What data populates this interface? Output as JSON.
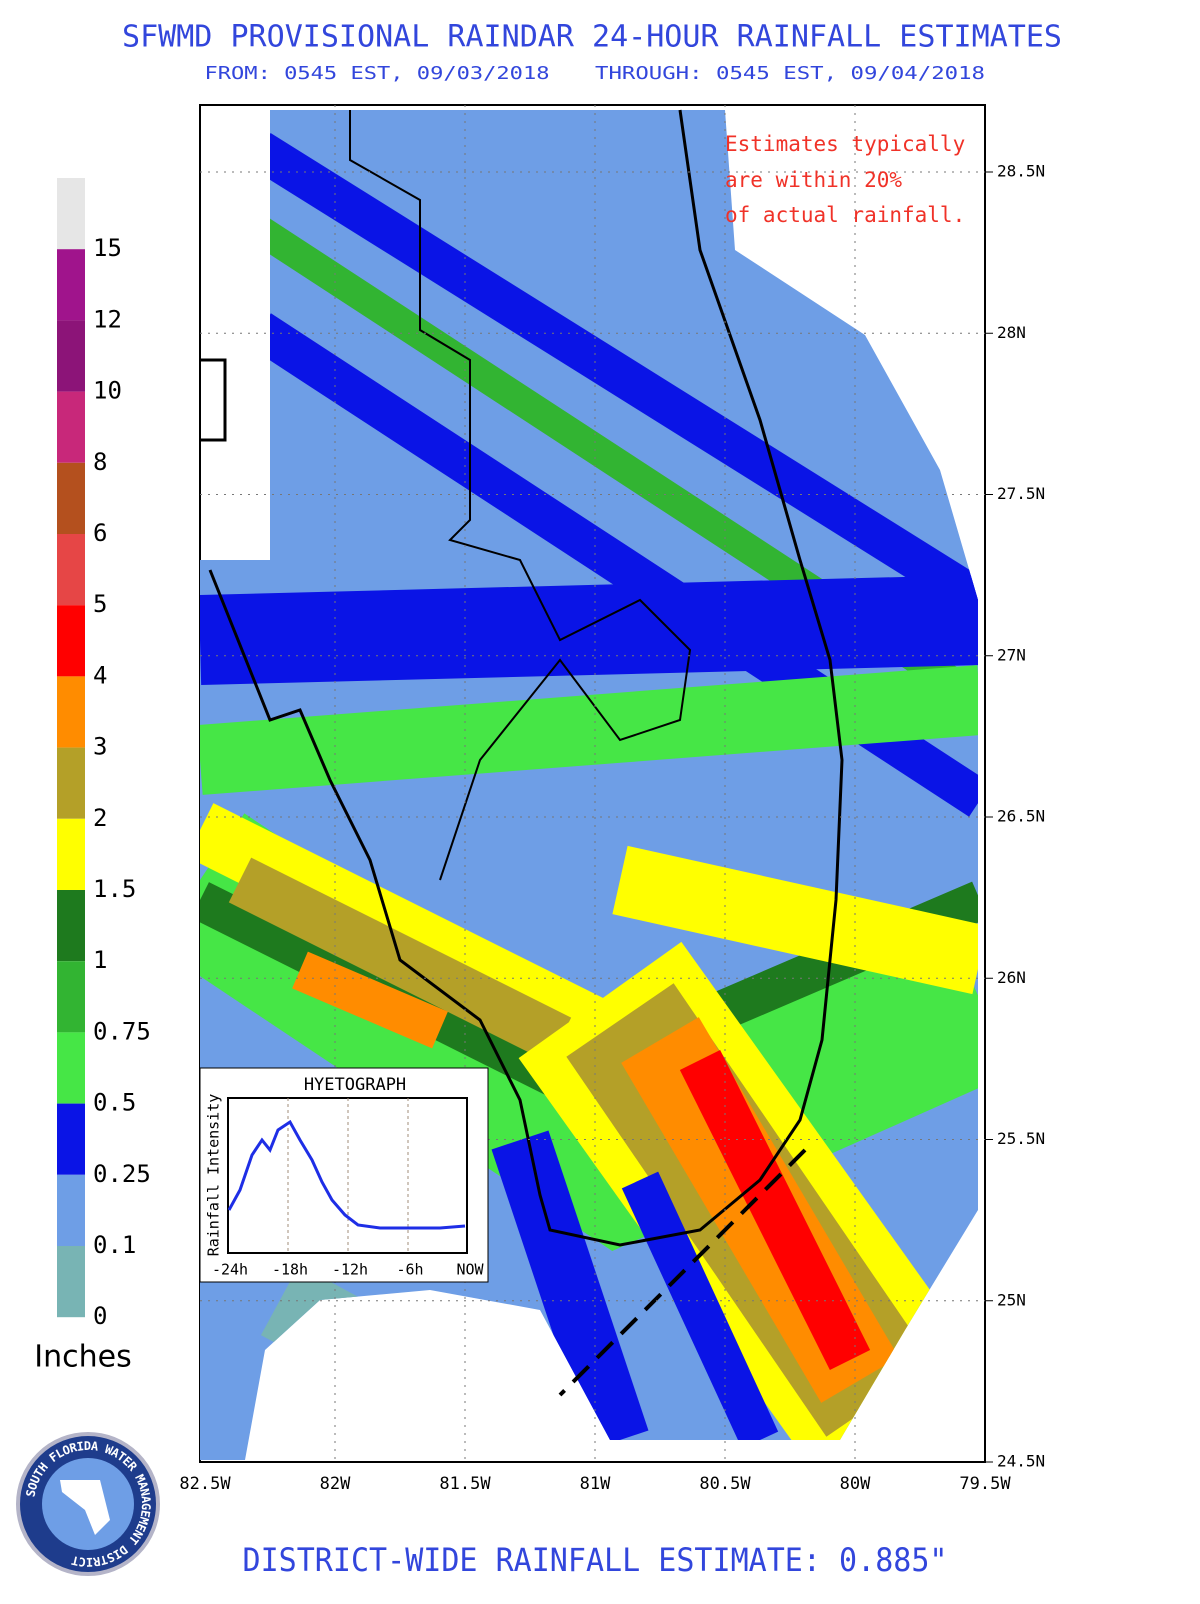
{
  "header": {
    "title": "SFWMD PROVISIONAL RAINDAR 24-HOUR RAINFALL ESTIMATES",
    "from": "FROM: 0545 EST, 09/03/2018",
    "through": "THROUGH: 0545 EST, 09/04/2018"
  },
  "legend": {
    "unit": "Inches",
    "items": [
      {
        "label": "15",
        "color": "#e6e6e6"
      },
      {
        "label": "12",
        "color": "#a0148c"
      },
      {
        "label": "10",
        "color": "#8c1478"
      },
      {
        "label": "8",
        "color": "#c8287a"
      },
      {
        "label": "6",
        "color": "#b4501e"
      },
      {
        "label": "5",
        "color": "#e64646"
      },
      {
        "label": "4",
        "color": "#ff0000"
      },
      {
        "label": "3",
        "color": "#ff8c00"
      },
      {
        "label": "2",
        "color": "#b4a028"
      },
      {
        "label": "1.5",
        "color": "#ffff00"
      },
      {
        "label": "1",
        "color": "#1e7a1e"
      },
      {
        "label": "0.75",
        "color": "#32b432"
      },
      {
        "label": "0.5",
        "color": "#46e646"
      },
      {
        "label": "0.25",
        "color": "#0a14e6"
      },
      {
        "label": "0.1",
        "color": "#6e9ee6"
      },
      {
        "label": "0",
        "color": "#78b4b4"
      }
    ]
  },
  "map": {
    "note": [
      "Estimates typically",
      "are within 20%",
      "of actual rainfall."
    ],
    "latitudes": [
      "28.5N",
      "28N",
      "27.5N",
      "27N",
      "26.5N",
      "26N",
      "25.5N",
      "25N",
      "24.5N"
    ],
    "longitudes": [
      "82.5W",
      "82W",
      "81.5W",
      "81W",
      "80.5W",
      "80W",
      "79.5W"
    ]
  },
  "hyetograph": {
    "title": "HYETOGRAPH",
    "y_label": "Rainfall Intensity",
    "x_labels": [
      "-24h",
      "-18h",
      "-12h",
      "-6h",
      "NOW"
    ]
  },
  "footer": "DISTRICT-WIDE RAINFALL ESTIMATE: 0.885\"",
  "logo": "SOUTH FLORIDA WATER MANAGEMENT DISTRICT"
}
